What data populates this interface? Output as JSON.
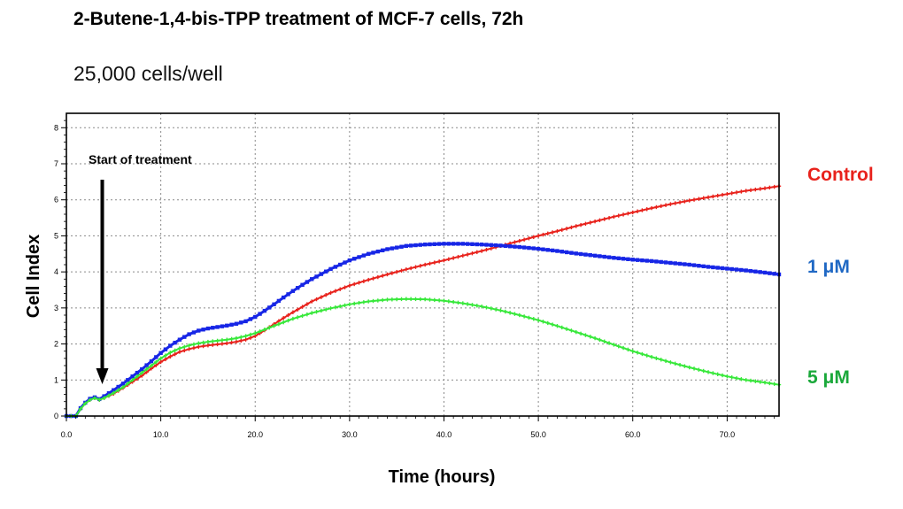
{
  "header": {
    "title": "2-Butene-1,4-bis-TPP treatment of MCF-7 cells, 72h",
    "subtitle": "25,000 cells/well"
  },
  "chart_data": {
    "type": "line",
    "title": "2-Butene-1,4-bis-TPP treatment of MCF-7 cells, 72h",
    "subtitle": "25,000 cells/well",
    "xlabel": "Time (hours)",
    "ylabel": "Cell Index",
    "xlim": [
      0,
      75.5
    ],
    "ylim": [
      0,
      8.4
    ],
    "x_ticks": [
      0,
      10,
      20,
      30,
      40,
      50,
      60,
      70
    ],
    "x_tick_labels": [
      "0.0",
      "10.0",
      "20.0",
      "30.0",
      "40.0",
      "50.0",
      "60.0",
      "70.0"
    ],
    "y_ticks": [
      0,
      1,
      2,
      3,
      4,
      5,
      6,
      7,
      8
    ],
    "y_tick_labels": [
      "0",
      "1",
      "2",
      "3",
      "4",
      "5",
      "6",
      "7",
      "8"
    ],
    "grid": true,
    "annotation": {
      "text": "Start of treatment",
      "x": 3.8
    },
    "series": [
      {
        "name": "Control",
        "color": "#e8221c",
        "x": [
          0,
          1,
          1.5,
          2,
          2.5,
          3,
          3.5,
          4,
          5,
          6,
          7,
          8,
          9,
          10,
          11,
          12,
          13,
          14,
          15,
          16,
          17,
          18,
          19,
          20,
          21,
          22,
          23,
          24,
          25,
          26,
          28,
          30,
          32,
          34,
          36,
          38,
          40,
          42,
          44,
          46,
          48,
          50,
          52,
          54,
          56,
          58,
          60,
          62,
          64,
          66,
          68,
          70,
          72,
          74,
          75.5
        ],
        "y": [
          0,
          0,
          0.2,
          0.35,
          0.45,
          0.5,
          0.45,
          0.5,
          0.62,
          0.78,
          0.95,
          1.12,
          1.32,
          1.5,
          1.65,
          1.78,
          1.86,
          1.92,
          1.96,
          1.99,
          2.02,
          2.06,
          2.12,
          2.22,
          2.38,
          2.55,
          2.72,
          2.88,
          3.03,
          3.18,
          3.42,
          3.62,
          3.78,
          3.93,
          4.07,
          4.2,
          4.32,
          4.45,
          4.58,
          4.72,
          4.86,
          5,
          5.13,
          5.27,
          5.4,
          5.53,
          5.65,
          5.77,
          5.88,
          5.98,
          6.07,
          6.16,
          6.25,
          6.32,
          6.38
        ]
      },
      {
        "name": "1 μM",
        "color": "#1726e6",
        "x": [
          0,
          1,
          1.5,
          2,
          2.5,
          3,
          3.5,
          4,
          5,
          6,
          7,
          8,
          9,
          10,
          11,
          12,
          13,
          14,
          15,
          16,
          17,
          18,
          19,
          20,
          21,
          22,
          23,
          24,
          25,
          26,
          28,
          30,
          32,
          34,
          36,
          38,
          40,
          42,
          44,
          46,
          48,
          50,
          52,
          54,
          56,
          58,
          60,
          62,
          64,
          66,
          68,
          70,
          72,
          74,
          75.5
        ],
        "y": [
          0,
          0,
          0.22,
          0.37,
          0.48,
          0.52,
          0.47,
          0.55,
          0.72,
          0.9,
          1.1,
          1.3,
          1.52,
          1.75,
          1.95,
          2.12,
          2.27,
          2.37,
          2.43,
          2.47,
          2.51,
          2.56,
          2.63,
          2.75,
          2.92,
          3.1,
          3.29,
          3.47,
          3.64,
          3.8,
          4.08,
          4.32,
          4.5,
          4.63,
          4.72,
          4.76,
          4.78,
          4.78,
          4.76,
          4.73,
          4.69,
          4.64,
          4.58,
          4.51,
          4.45,
          4.39,
          4.34,
          4.3,
          4.25,
          4.2,
          4.14,
          4.09,
          4.04,
          3.98,
          3.93
        ]
      },
      {
        "name": "5 μM",
        "color": "#37e83a",
        "x": [
          0,
          1,
          1.5,
          2,
          2.5,
          3,
          3.5,
          4,
          5,
          6,
          7,
          8,
          9,
          10,
          11,
          12,
          13,
          14,
          15,
          16,
          17,
          18,
          19,
          20,
          21,
          22,
          23,
          24,
          25,
          26,
          28,
          30,
          32,
          34,
          36,
          38,
          40,
          42,
          44,
          46,
          48,
          50,
          52,
          54,
          56,
          58,
          60,
          62,
          64,
          66,
          68,
          70,
          72,
          74,
          75.5
        ],
        "y": [
          0,
          0,
          0.2,
          0.35,
          0.45,
          0.5,
          0.45,
          0.5,
          0.64,
          0.8,
          1,
          1.2,
          1.4,
          1.6,
          1.76,
          1.88,
          1.96,
          2.02,
          2.06,
          2.09,
          2.12,
          2.16,
          2.22,
          2.3,
          2.4,
          2.5,
          2.6,
          2.7,
          2.78,
          2.86,
          2.99,
          3.1,
          3.18,
          3.23,
          3.25,
          3.24,
          3.2,
          3.13,
          3.04,
          2.93,
          2.8,
          2.66,
          2.5,
          2.33,
          2.16,
          1.98,
          1.8,
          1.64,
          1.49,
          1.35,
          1.22,
          1.1,
          1,
          0.93,
          0.87
        ]
      }
    ]
  }
}
